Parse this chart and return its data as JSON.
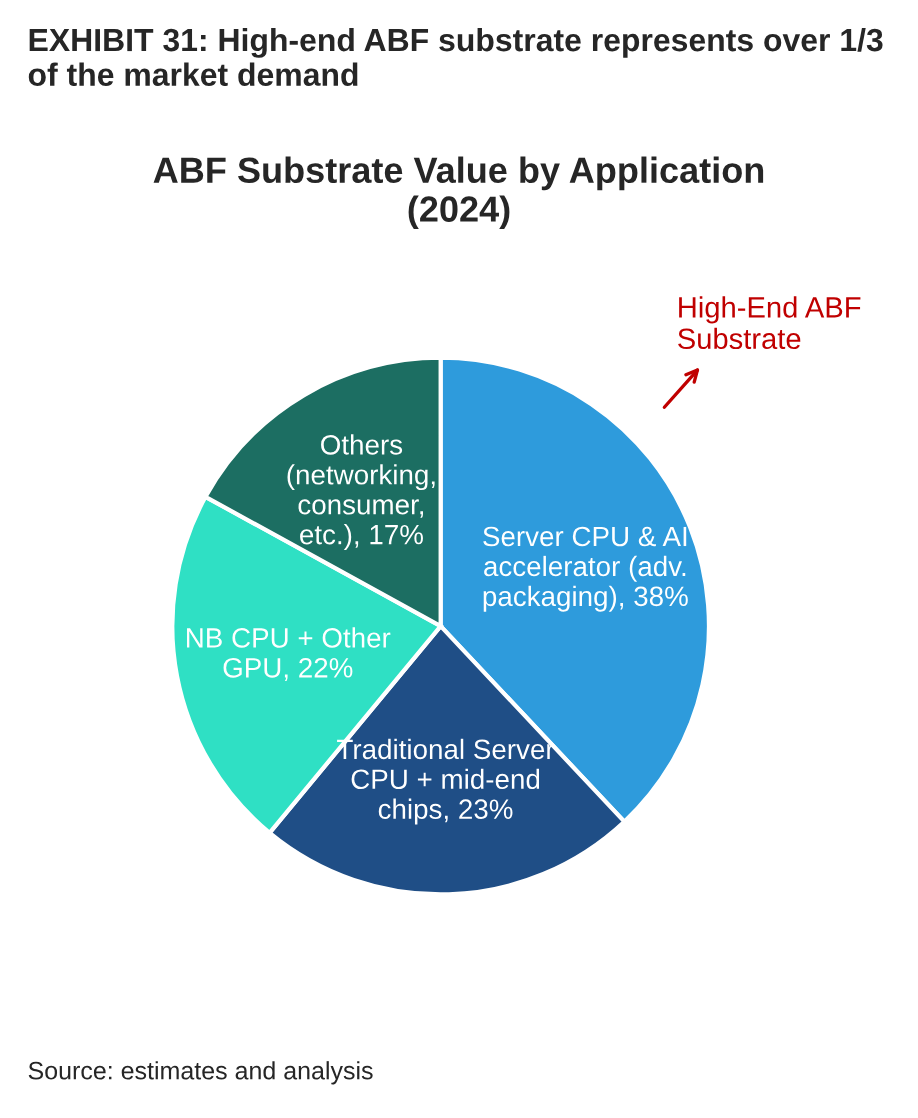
{
  "chart_data": {
    "type": "pie",
    "title": "EXHIBIT 31: High-end ABF substrate represents over 1/3 of the market demand",
    "subtitle": "ABF Substrate Value by Application\n(2024)",
    "categories": [
      "Server CPU & AI\naccelerator (adv.\npackaging), 38%",
      "Traditional Server\nCPU + mid-end\nchips, 23%",
      "NB CPU + Other\nGPU, 22%",
      "Others\n(networking,\nconsumer,\netc.), 17%"
    ],
    "values": [
      38,
      23,
      22,
      17
    ],
    "colors": [
      "#2e9bdc",
      "#1f4e86",
      "#2fe0c4",
      "#1c6e62"
    ],
    "annotations": [
      "High-End ABF\nSubstrate",
      "Source: estimates and analysis"
    ]
  }
}
